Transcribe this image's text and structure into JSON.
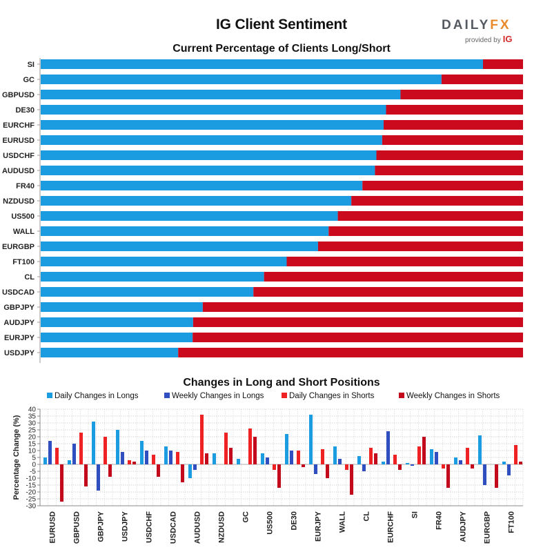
{
  "header": {
    "title": "IG Client Sentiment",
    "logo_main": "DAILY",
    "logo_accent": "FX",
    "logo_sub": "provided by",
    "logo_ig": "IG"
  },
  "colors": {
    "long": "#1c9ce0",
    "short": "#cc0a1e",
    "daily_long": "#1c9ce0",
    "weekly_long": "#2f4fc1",
    "daily_short": "#ee2222",
    "weekly_short": "#c30a1c"
  },
  "chart_data": [
    {
      "type": "bar",
      "orientation": "horizontal",
      "stacked": true,
      "title": "Current Percentage of Clients Long/Short",
      "categories": [
        "SI",
        "GC",
        "GBPUSD",
        "DE30",
        "EURCHF",
        "EURUSD",
        "USDCHF",
        "AUDUSD",
        "FR40",
        "NZDUSD",
        "US500",
        "WALL",
        "EURGBP",
        "FT100",
        "CL",
        "USDCAD",
        "GBPJPY",
        "AUDJPY",
        "EURJPY",
        "USDJPY"
      ],
      "series": [
        {
          "values": [
            91.7,
            83.1,
            74.6,
            71.6,
            71.1,
            70.8,
            69.6,
            69.3,
            66.7,
            64.4,
            61.6,
            59.7,
            57.5,
            51.0,
            46.3,
            44.1,
            33.6,
            31.6,
            31.5,
            28.5
          ]
        },
        {
          "values": [
            8.3,
            16.9,
            25.4,
            28.4,
            28.9,
            29.2,
            30.4,
            30.7,
            33.3,
            35.6,
            38.4,
            40.3,
            42.5,
            49.0,
            53.7,
            55.9,
            66.4,
            68.4,
            68.5,
            71.5
          ]
        }
      ],
      "xlim": [
        0,
        100
      ]
    },
    {
      "type": "bar",
      "title": "Changes in Long and Short Positions",
      "ylabel": "Percentage Change (%)",
      "ylim": [
        -30,
        40
      ],
      "yticks": [
        -30,
        -25,
        -20,
        -15,
        -10,
        -5,
        0,
        5,
        10,
        15,
        20,
        25,
        30,
        35,
        40
      ],
      "grid": true,
      "legend": "top",
      "categories": [
        "EURUSD",
        "GBPUSD",
        "GBPJPY",
        "USDJPY",
        "USDCHF",
        "USDCAD",
        "AUDUSD",
        "NZDUSD",
        "GC",
        "US500",
        "DE30",
        "EURJPY",
        "WALL",
        "CL",
        "EURCHF",
        "SI",
        "FR40",
        "AUDJPY",
        "EURGBP",
        "FT100"
      ],
      "series": [
        {
          "name": "Daily Changes in Longs",
          "values": [
            5,
            3,
            31,
            25,
            17,
            13,
            -10,
            8,
            4,
            8,
            22,
            36,
            13,
            6,
            2,
            1,
            11,
            5,
            21,
            2
          ]
        },
        {
          "name": "Weekly Changes in Longs",
          "values": [
            17,
            15,
            -19,
            9,
            10,
            10,
            -4,
            0,
            0,
            5,
            10,
            -7,
            4,
            -5,
            24,
            -1,
            9,
            3,
            -15,
            -8
          ]
        },
        {
          "name": "Daily Changes in Shorts",
          "values": [
            12,
            23,
            20,
            3,
            7,
            9,
            36,
            23,
            26,
            -4,
            10,
            11,
            -4,
            12,
            7,
            13,
            -3,
            12,
            0,
            14
          ]
        },
        {
          "name": "Weekly Changes in Shorts",
          "values": [
            -27,
            -16,
            -9,
            2,
            -9,
            -13,
            8,
            12,
            20,
            -17,
            -2,
            -10,
            -22,
            8,
            -4,
            20,
            -17,
            -3,
            -17,
            2
          ]
        }
      ]
    }
  ]
}
